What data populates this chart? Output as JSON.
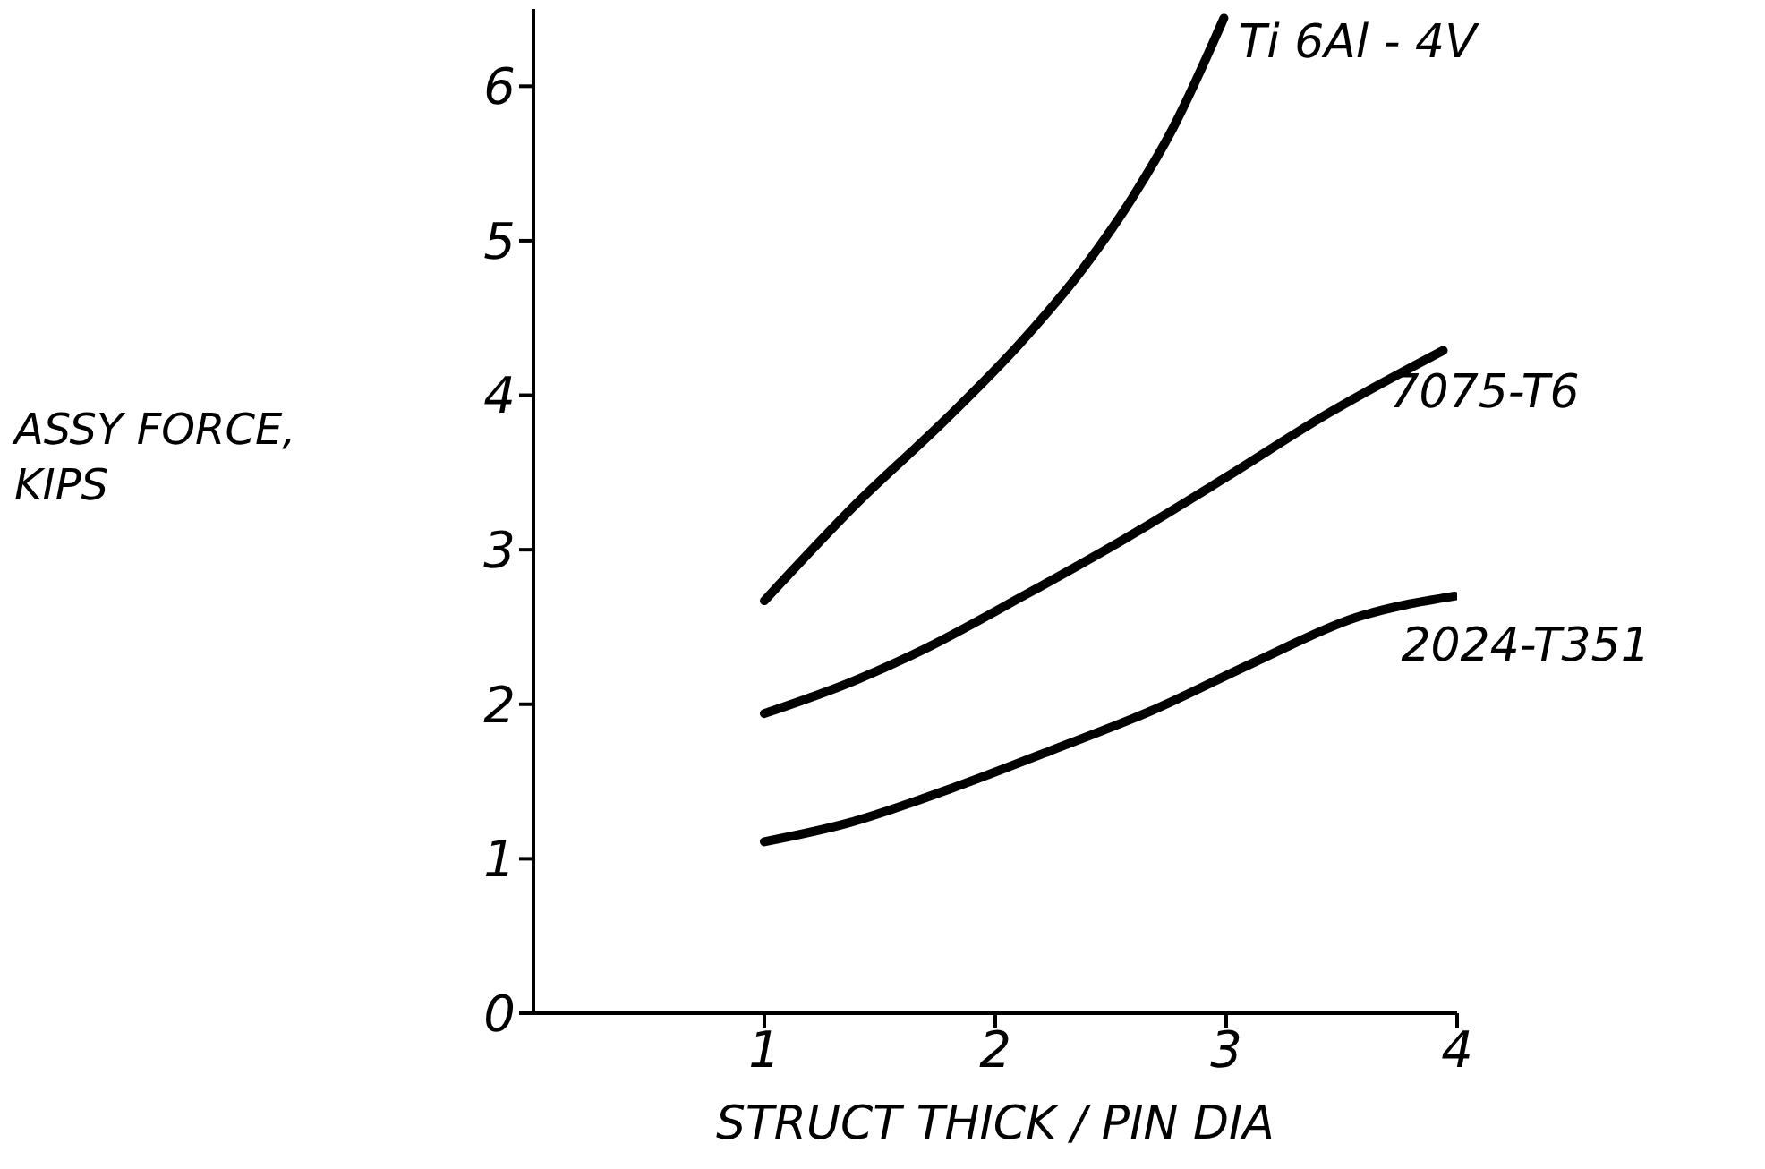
{
  "chart_data": {
    "type": "line",
    "xlabel": "STRUCT THICK / PIN DIA",
    "ylabel": "ASSY FORCE,\nKIPS",
    "xlim": [
      0,
      4
    ],
    "xticks": [
      1,
      2,
      3,
      4
    ],
    "ylim": [
      0,
      6.5
    ],
    "yticks": [
      0,
      1,
      2,
      3,
      4,
      5,
      6
    ],
    "grid": false,
    "legend": false,
    "marker": "none",
    "line_style": "solid",
    "series": [
      {
        "name": "Ti 6Al - 4V",
        "color": "#000000",
        "x": [
          1.0,
          1.4,
          1.79,
          2.11,
          2.38,
          2.59,
          2.77,
          2.99
        ],
        "values": [
          2.67,
          3.3,
          3.85,
          4.34,
          4.82,
          5.27,
          5.73,
          6.44
        ]
      },
      {
        "name": "7075-T6",
        "color": "#000000",
        "x": [
          1.0,
          1.37,
          1.67,
          2.12,
          2.56,
          3.0,
          3.45,
          3.94
        ],
        "values": [
          1.94,
          2.14,
          2.34,
          2.7,
          3.07,
          3.47,
          3.89,
          4.29
        ]
      },
      {
        "name": "2024-T351",
        "color": "#000000",
        "x": [
          1.0,
          1.36,
          1.8,
          2.24,
          2.68,
          3.12,
          3.56,
          3.99
        ],
        "values": [
          1.11,
          1.23,
          1.45,
          1.7,
          1.96,
          2.27,
          2.56,
          2.7
        ]
      }
    ]
  }
}
